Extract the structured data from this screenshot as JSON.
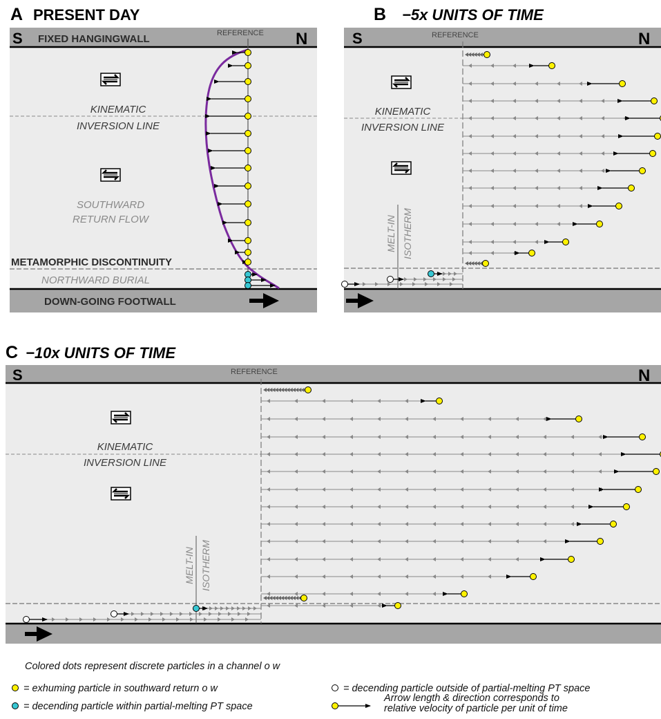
{
  "panel_a": {
    "letter": "A",
    "title": "PRESENT DAY",
    "left_side": "S",
    "right_side": "N",
    "top_boundary": "FIXED HANGINGWALL",
    "reference": "REFERENCE",
    "inversion_line_1": "KINEMATIC",
    "inversion_line_2": "INVERSION LINE",
    "return_flow_1": "SOUTHWARD",
    "return_flow_2": "RETURN FLOW",
    "discontinuity": "METAMORPHIC DISCONTINUITY",
    "burial": "NORTHWARD BURIAL",
    "footwall": "DOWN-GOING FOOTWALL"
  },
  "panel_b": {
    "letter": "B",
    "title": "−5x UNITS OF TIME",
    "left_side": "S",
    "right_side": "N",
    "reference": "REFERENCE",
    "inversion_line_1": "KINEMATIC",
    "inversion_line_2": "INVERSION LINE",
    "isotherm_1": "MELT-IN",
    "isotherm_2": "ISOTHERM"
  },
  "panel_c": {
    "letter": "C",
    "title": "−10x UNITS OF TIME",
    "left_side": "S",
    "right_side": "N",
    "reference": "REFERENCE",
    "inversion_line_1": "KINEMATIC",
    "inversion_line_2": "INVERSION LINE",
    "isotherm_1": "MELT-IN",
    "isotherm_2": "ISOTHERM"
  },
  "legend": {
    "intro": "Colored dots represent discrete particles in a channel  o w",
    "yellow": "= exhuming particle in southward return  o w",
    "cyan": "= decending particle within partial-melting PT space",
    "white": "= decending particle outside of partial-melting PT space",
    "arrow_1": "Arrow length & direction corresponds to",
    "arrow_2": "relative velocity of particle per unit of time"
  },
  "colors": {
    "channel": "#ececec",
    "walls": "#a6a6a6",
    "yellow_particle": "#fff200",
    "cyan_particle": "#38c7d3",
    "white_particle": "#ffffff",
    "velocity_profile": "#7a2a9e"
  }
}
